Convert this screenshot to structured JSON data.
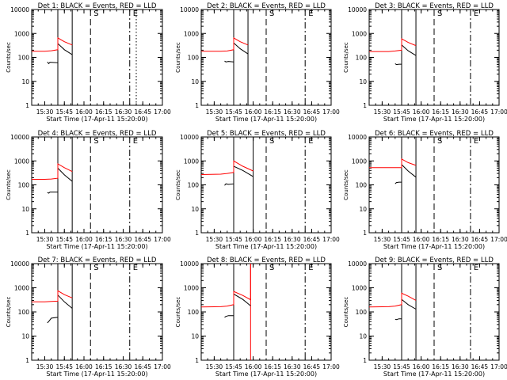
{
  "figure": {
    "xlabel": "Start Time (17-Apr-11 15:20:00)",
    "ylabel": "Counts/sec",
    "x_tick_labels": [
      "15:30",
      "15:45",
      "16:00",
      "16:15",
      "16:30",
      "16:45",
      "17:00"
    ],
    "y_tick_labels": [
      "1",
      "10",
      "100",
      "1000",
      "10000"
    ],
    "marker_s": "S",
    "marker_e": "E",
    "colors": {
      "events": "#000000",
      "lld": "#ff0000",
      "axes": "#000000",
      "background": "#ffffff"
    }
  },
  "chart_data": [
    {
      "type": "line",
      "title": "Det 1: BLACK = Events, RED = LLD",
      "xlabel": "Start Time (17-Apr-11 15:20:00)",
      "ylabel": "Counts/sec",
      "ylog": true,
      "ylim": [
        1,
        10000
      ],
      "xlim": [
        "15:20",
        "17:00"
      ],
      "vlines": [
        {
          "t": "15:40",
          "style": "solid"
        },
        {
          "t": "15:51",
          "style": "solid"
        },
        {
          "t": "16:05",
          "style": "dashed",
          "label": "S"
        },
        {
          "t": "16:35",
          "style": "dash-dot",
          "label": "E"
        },
        {
          "t": "16:40",
          "style": "dotted"
        }
      ],
      "series": [
        {
          "name": "Events",
          "color": "#000000",
          "points": [
            [
              "15:32",
              65
            ],
            [
              "15:33",
              55
            ],
            [
              "15:34",
              63
            ],
            [
              "15:40",
              60
            ],
            [
              "15:40",
              380
            ],
            [
              "15:45",
              210
            ],
            [
              "15:51",
              130
            ]
          ]
        },
        {
          "name": "LLD",
          "color": "#ff0000",
          "points": [
            [
              "15:20",
              180
            ],
            [
              "15:30",
              180
            ],
            [
              "15:35",
              190
            ],
            [
              "15:40",
              210
            ],
            [
              "15:40",
              650
            ],
            [
              "15:45",
              450
            ],
            [
              "15:51",
              330
            ]
          ]
        }
      ]
    },
    {
      "type": "line",
      "title": "Det 2: BLACK = Events, RED = LLD",
      "xlabel": "Start Time (17-Apr-11 15:20:00)",
      "ylabel": "Counts/sec",
      "ylog": true,
      "ylim": [
        1,
        10000
      ],
      "xlim": [
        "15:20",
        "17:00"
      ],
      "vlines": [
        {
          "t": "15:45",
          "style": "solid"
        },
        {
          "t": "15:56",
          "style": "solid"
        },
        {
          "t": "16:10",
          "style": "dashed",
          "label": "S"
        },
        {
          "t": "16:40",
          "style": "dash-dot",
          "label": "E"
        }
      ],
      "series": [
        {
          "name": "Events",
          "color": "#000000",
          "points": [
            [
              "15:38",
              70
            ],
            [
              "15:39",
              65
            ],
            [
              "15:41",
              68
            ],
            [
              "15:45",
              65
            ],
            [
              "15:45",
              400
            ],
            [
              "15:50",
              230
            ],
            [
              "15:56",
              140
            ]
          ]
        },
        {
          "name": "LLD",
          "color": "#ff0000",
          "points": [
            [
              "15:20",
              180
            ],
            [
              "15:35",
              180
            ],
            [
              "15:40",
              185
            ],
            [
              "15:45",
              210
            ],
            [
              "15:45",
              650
            ],
            [
              "15:50",
              450
            ],
            [
              "15:56",
              330
            ]
          ]
        }
      ]
    },
    {
      "type": "line",
      "title": "Det 3: BLACK = Events, RED = LLD",
      "xlabel": "Start Time (17-Apr-11 15:20:00)",
      "ylabel": "Counts/sec",
      "ylog": true,
      "ylim": [
        1,
        10000
      ],
      "xlim": [
        "15:20",
        "17:00"
      ],
      "vlines": [
        {
          "t": "15:45",
          "style": "solid"
        },
        {
          "t": "15:56",
          "style": "solid"
        },
        {
          "t": "16:10",
          "style": "dashed",
          "label": "S"
        },
        {
          "t": "16:38",
          "style": "dash-dot",
          "label": "E"
        }
      ],
      "series": [
        {
          "name": "Events",
          "color": "#000000",
          "points": [
            [
              "15:40",
              55
            ],
            [
              "15:41",
              50
            ],
            [
              "15:43",
              52
            ],
            [
              "15:45",
              52
            ],
            [
              "15:45",
              330
            ],
            [
              "15:50",
              190
            ],
            [
              "15:56",
              120
            ]
          ]
        },
        {
          "name": "LLD",
          "color": "#ff0000",
          "points": [
            [
              "15:20",
              175
            ],
            [
              "15:35",
              175
            ],
            [
              "15:40",
              185
            ],
            [
              "15:45",
              200
            ],
            [
              "15:45",
              600
            ],
            [
              "15:50",
              420
            ],
            [
              "15:56",
              310
            ]
          ]
        }
      ]
    },
    {
      "type": "line",
      "title": "Det 4: BLACK = Events, RED = LLD",
      "xlabel": "Start Time (17-Apr-11 15:20:00)",
      "ylabel": "Counts/sec",
      "ylog": true,
      "ylim": [
        1,
        10000
      ],
      "xlim": [
        "15:20",
        "17:00"
      ],
      "vlines": [
        {
          "t": "15:40",
          "style": "solid"
        },
        {
          "t": "15:51",
          "style": "solid"
        },
        {
          "t": "16:05",
          "style": "dashed",
          "label": "S"
        },
        {
          "t": "16:35",
          "style": "dash-dot",
          "label": "E"
        }
      ],
      "series": [
        {
          "name": "Events",
          "color": "#000000",
          "points": [
            [
              "15:32",
              48
            ],
            [
              "15:33",
              45
            ],
            [
              "15:34",
              50
            ],
            [
              "15:40",
              50
            ],
            [
              "15:40",
              500
            ],
            [
              "15:45",
              260
            ],
            [
              "15:51",
              140
            ]
          ]
        },
        {
          "name": "LLD",
          "color": "#ff0000",
          "points": [
            [
              "15:20",
              170
            ],
            [
              "15:30",
              170
            ],
            [
              "15:35",
              175
            ],
            [
              "15:40",
              190
            ],
            [
              "15:40",
              750
            ],
            [
              "15:45",
              520
            ],
            [
              "15:51",
              360
            ]
          ]
        }
      ]
    },
    {
      "type": "line",
      "title": "Det 5: BLACK = Events, RED = LLD",
      "xlabel": "Start Time (17-Apr-11 15:20:00)",
      "ylabel": "Counts/sec",
      "ylog": true,
      "ylim": [
        1,
        10000
      ],
      "xlim": [
        "15:20",
        "17:00"
      ],
      "vlines": [
        {
          "t": "15:45",
          "style": "solid"
        },
        {
          "t": "16:00",
          "style": "solid"
        },
        {
          "t": "16:10",
          "style": "dashed",
          "label": "S"
        },
        {
          "t": "16:40",
          "style": "dash-dot",
          "label": "E"
        }
      ],
      "series": [
        {
          "name": "Events",
          "color": "#000000",
          "points": [
            [
              "15:38",
              95
            ],
            [
              "15:39",
              110
            ],
            [
              "15:41",
              105
            ],
            [
              "15:45",
              110
            ],
            [
              "15:45",
              600
            ],
            [
              "15:52",
              400
            ],
            [
              "16:00",
              220
            ]
          ]
        },
        {
          "name": "LLD",
          "color": "#ff0000",
          "points": [
            [
              "15:20",
              270
            ],
            [
              "15:35",
              280
            ],
            [
              "15:40",
              300
            ],
            [
              "15:45",
              330
            ],
            [
              "15:45",
              1000
            ],
            [
              "15:52",
              600
            ],
            [
              "16:00",
              380
            ]
          ]
        }
      ]
    },
    {
      "type": "line",
      "title": "Det 6: BLACK = Events, RED = LLD",
      "xlabel": "Start Time (17-Apr-11 15:20:00)",
      "ylabel": "Counts/sec",
      "ylog": true,
      "ylim": [
        1,
        10000
      ],
      "xlim": [
        "15:20",
        "17:00"
      ],
      "vlines": [
        {
          "t": "15:45",
          "style": "solid"
        },
        {
          "t": "15:56",
          "style": "solid"
        },
        {
          "t": "16:10",
          "style": "dashed",
          "label": "S"
        },
        {
          "t": "16:38",
          "style": "dash-dot",
          "label": "E"
        }
      ],
      "series": [
        {
          "name": "Events",
          "color": "#000000",
          "points": [
            [
              "15:40",
              110
            ],
            [
              "15:41",
              125
            ],
            [
              "15:43",
              130
            ],
            [
              "15:45",
              130
            ],
            [
              "15:45",
              700
            ],
            [
              "15:50",
              380
            ],
            [
              "15:56",
              210
            ]
          ]
        },
        {
          "name": "LLD",
          "color": "#ff0000",
          "points": [
            [
              "15:20",
              520
            ],
            [
              "15:35",
              520
            ],
            [
              "15:40",
              520
            ],
            [
              "15:45",
              520
            ],
            [
              "15:45",
              1200
            ],
            [
              "15:50",
              850
            ],
            [
              "15:56",
              650
            ]
          ]
        }
      ]
    },
    {
      "type": "line",
      "title": "Det 7: BLACK = Events, RED = LLD",
      "xlabel": "Start Time (17-Apr-11 15:20:00)",
      "ylabel": "Counts/sec",
      "ylog": true,
      "ylim": [
        1,
        10000
      ],
      "xlim": [
        "15:20",
        "17:00"
      ],
      "vlines": [
        {
          "t": "15:40",
          "style": "solid"
        },
        {
          "t": "15:51",
          "style": "solid"
        },
        {
          "t": "16:05",
          "style": "dashed",
          "label": "S"
        },
        {
          "t": "16:35",
          "style": "dash-dot",
          "label": "E"
        }
      ],
      "series": [
        {
          "name": "Events",
          "color": "#000000",
          "points": [
            [
              "15:32",
              35
            ],
            [
              "15:33",
              40
            ],
            [
              "15:35",
              55
            ],
            [
              "15:40",
              60
            ],
            [
              "15:40",
              500
            ],
            [
              "15:45",
              260
            ],
            [
              "15:51",
              140
            ]
          ]
        },
        {
          "name": "LLD",
          "color": "#ff0000",
          "points": [
            [
              "15:20",
              260
            ],
            [
              "15:30",
              260
            ],
            [
              "15:35",
              270
            ],
            [
              "15:40",
              280
            ],
            [
              "15:40",
              750
            ],
            [
              "15:45",
              520
            ],
            [
              "15:51",
              380
            ]
          ]
        }
      ]
    },
    {
      "type": "line",
      "title": "Det 8: BLACK = Events, RED = LLD",
      "xlabel": "Start Time (17-Apr-11 15:20:00)",
      "ylabel": "Counts/sec",
      "ylog": true,
      "ylim": [
        1,
        10000
      ],
      "xlim": [
        "15:20",
        "17:00"
      ],
      "vlines": [
        {
          "t": "15:45",
          "style": "solid"
        },
        {
          "t": "15:58",
          "style": "red-solid"
        },
        {
          "t": "16:10",
          "style": "dashed",
          "label": "S"
        },
        {
          "t": "16:40",
          "style": "dash-dot",
          "label": "E"
        }
      ],
      "series": [
        {
          "name": "Events",
          "color": "#000000",
          "points": [
            [
              "15:38",
              60
            ],
            [
              "15:39",
              65
            ],
            [
              "15:41",
              70
            ],
            [
              "15:45",
              70
            ],
            [
              "15:45",
              550
            ],
            [
              "15:52",
              330
            ],
            [
              "15:58",
              180
            ]
          ]
        },
        {
          "name": "LLD",
          "color": "#ff0000",
          "points": [
            [
              "15:20",
              160
            ],
            [
              "15:35",
              165
            ],
            [
              "15:40",
              175
            ],
            [
              "15:45",
              200
            ],
            [
              "15:45",
              700
            ],
            [
              "15:52",
              480
            ],
            [
              "15:58",
              320
            ],
            [
              "15:58",
              10000
            ]
          ]
        }
      ]
    },
    {
      "type": "line",
      "title": "Det 9: BLACK = Events, RED = LLD",
      "xlabel": "Start Time (17-Apr-11 15:20:00)",
      "ylabel": "Counts/sec",
      "ylog": true,
      "ylim": [
        1,
        10000
      ],
      "xlim": [
        "15:20",
        "17:00"
      ],
      "vlines": [
        {
          "t": "15:45",
          "style": "solid"
        },
        {
          "t": "15:56",
          "style": "solid"
        },
        {
          "t": "16:10",
          "style": "dashed",
          "label": "S"
        },
        {
          "t": "16:38",
          "style": "dash-dot",
          "label": "E"
        }
      ],
      "series": [
        {
          "name": "Events",
          "color": "#000000",
          "points": [
            [
              "15:40",
              50
            ],
            [
              "15:41",
              48
            ],
            [
              "15:43",
              52
            ],
            [
              "15:45",
              52
            ],
            [
              "15:45",
              330
            ],
            [
              "15:50",
              200
            ],
            [
              "15:56",
              130
            ]
          ]
        },
        {
          "name": "LLD",
          "color": "#ff0000",
          "points": [
            [
              "15:20",
              160
            ],
            [
              "15:35",
              165
            ],
            [
              "15:40",
              175
            ],
            [
              "15:45",
              200
            ],
            [
              "15:45",
              600
            ],
            [
              "15:50",
              450
            ],
            [
              "15:56",
              300
            ]
          ]
        }
      ]
    }
  ]
}
